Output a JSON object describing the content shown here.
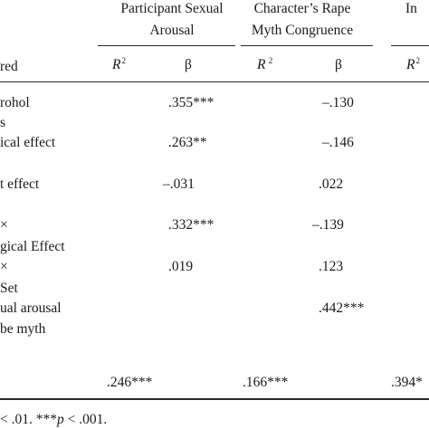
{
  "header": {
    "groups": [
      {
        "line1": "Participant Sexual",
        "line2": "Arousal"
      },
      {
        "line1": "Character’s Rape",
        "line2": "Myth Congruence"
      },
      {
        "line1": "In",
        "line2": ""
      }
    ],
    "row_label_fragment": "red",
    "r2_label": "R",
    "r2_sup": "2",
    "r2_sup_spaced": " 2",
    "beta_label": "β"
  },
  "rows": [
    {
      "label1": "rohol",
      "label2": "s",
      "arousal_beta": ".355***",
      "rape_myth_beta": "–.130"
    },
    {
      "label1": "ical effect",
      "label2": "",
      "arousal_beta": ".263**",
      "rape_myth_beta": "–.146"
    },
    {
      "label1": "t effect",
      "label2": "",
      "arousal_beta": "–.031",
      "rape_myth_beta": ".022"
    },
    {
      "label1": "×",
      "label2": "gical Effect",
      "arousal_beta": ".332***",
      "rape_myth_beta": "–.139"
    },
    {
      "label1": "×",
      "label2": "Set",
      "arousal_beta": ".019",
      "rape_myth_beta": ".123"
    },
    {
      "label1": "ual arousal",
      "label2": "be myth",
      "arousal_beta": "",
      "rape_myth_beta": ".442***"
    }
  ],
  "r2_row": {
    "arousal": ".246***",
    "rape_myth": ".166***",
    "third": ".394*"
  },
  "footnote": "< .01. ***p < .001."
}
